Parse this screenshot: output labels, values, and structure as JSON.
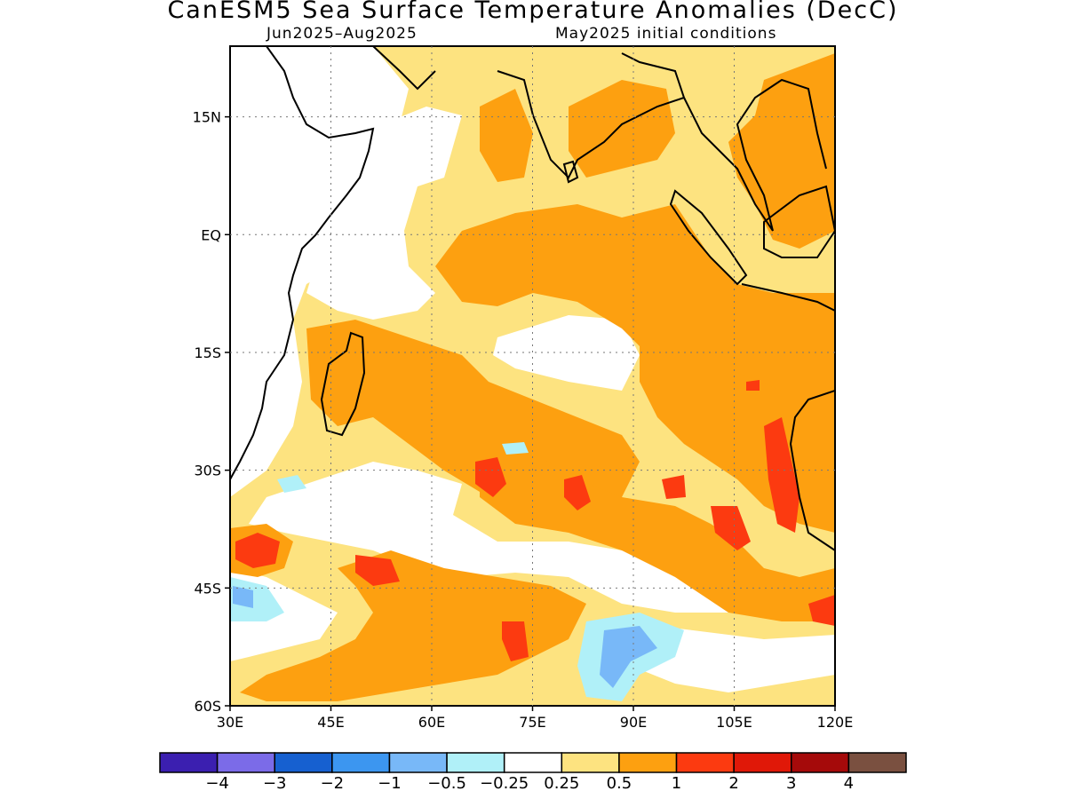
{
  "title": "CanESM5 Sea Surface Temperature Anomalies (DecC)",
  "period": "Jun2025–Aug2025",
  "init": "May2025 initial conditions",
  "map": {
    "lon_range": [
      30,
      120
    ],
    "lat_range": [
      -60,
      24
    ],
    "lat_ticks": [
      {
        "value": 15,
        "label": "15N"
      },
      {
        "value": 0,
        "label": "EQ"
      },
      {
        "value": -15,
        "label": "15S"
      },
      {
        "value": -30,
        "label": "30S"
      },
      {
        "value": -45,
        "label": "45S"
      },
      {
        "value": -60,
        "label": "60S"
      }
    ],
    "lon_ticks": [
      {
        "value": 30,
        "label": "30E"
      },
      {
        "value": 45,
        "label": "45E"
      },
      {
        "value": 60,
        "label": "60E"
      },
      {
        "value": 75,
        "label": "75E"
      },
      {
        "value": 90,
        "label": "90E"
      },
      {
        "value": 105,
        "label": "105E"
      },
      {
        "value": 120,
        "label": "120E"
      }
    ],
    "grid": "dotted"
  },
  "colorbar": {
    "colors": [
      "#3b1fb0",
      "#7b6be8",
      "#1660d0",
      "#3c96f0",
      "#78b8f8",
      "#b0f0f8",
      "#ffffff",
      "#fde380",
      "#fda010",
      "#fc3a10",
      "#e01808",
      "#a50a0a",
      "#7a5040"
    ],
    "labels": [
      "−4",
      "−3",
      "−2",
      "−1",
      "−0.5",
      "−0.25",
      "0.25",
      "0.5",
      "1",
      "2",
      "3",
      "4"
    ]
  }
}
